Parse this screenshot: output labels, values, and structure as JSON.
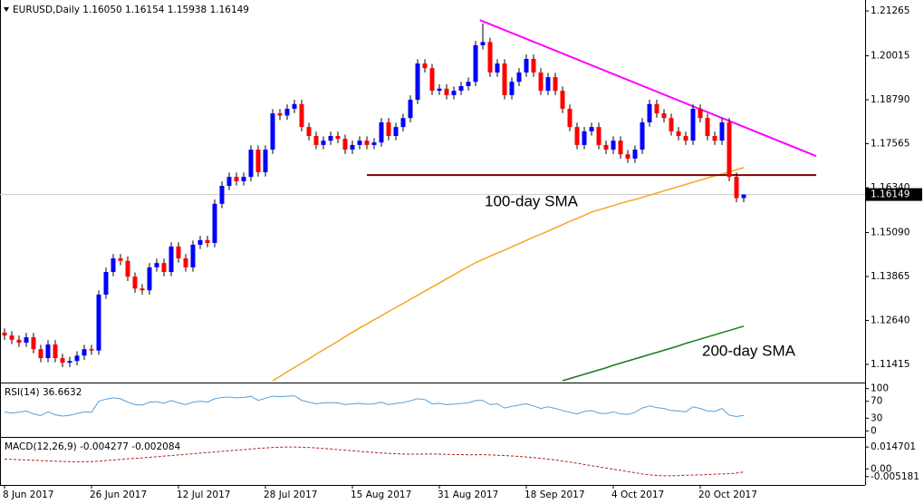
{
  "chart_data": [
    {
      "type": "candlestick",
      "title": "EURUSD,Daily  1.16050 1.16154 1.15938 1.16149",
      "categories": [
        "8 Jun 2017",
        null,
        null,
        null,
        null,
        null,
        null,
        null,
        null,
        null,
        null,
        null,
        "26 Jun 2017",
        null,
        null,
        null,
        null,
        null,
        null,
        null,
        null,
        null,
        null,
        null,
        "12 Jul 2017",
        null,
        null,
        null,
        null,
        null,
        null,
        null,
        null,
        null,
        null,
        null,
        "28 Jul 2017",
        null,
        null,
        null,
        null,
        null,
        null,
        null,
        null,
        null,
        null,
        null,
        "15 Aug 2017",
        null,
        null,
        null,
        null,
        null,
        null,
        null,
        null,
        null,
        null,
        null,
        "31 Aug 2017",
        null,
        null,
        null,
        null,
        null,
        null,
        null,
        null,
        null,
        null,
        null,
        "18 Sep 2017",
        null,
        null,
        null,
        null,
        null,
        null,
        null,
        null,
        null,
        null,
        null,
        "4 Oct 2017",
        null,
        null,
        null,
        null,
        null,
        null,
        null,
        null,
        null,
        null,
        null,
        "20 Oct 2017",
        null,
        null,
        null,
        null,
        null,
        null
      ],
      "open": [
        1.123,
        1.1222,
        1.121,
        1.1202,
        1.1217,
        1.1184,
        1.1159,
        1.1197,
        1.1159,
        1.1146,
        1.1151,
        1.1166,
        1.1184,
        1.118,
        1.1336,
        1.1399,
        1.1437,
        1.143,
        1.1386,
        1.1353,
        1.1348,
        1.1412,
        1.1424,
        1.1399,
        1.147,
        1.1437,
        1.1412,
        1.1475,
        1.1488,
        1.148,
        1.1589,
        1.1639,
        1.1664,
        1.1652,
        1.1664,
        1.174,
        1.1677,
        1.174,
        1.1841,
        1.1835,
        1.1854,
        1.1867,
        1.1803,
        1.1778,
        1.1753,
        1.1765,
        1.1778,
        1.177,
        1.174,
        1.1753,
        1.1765,
        1.1753,
        1.176,
        1.1816,
        1.1778,
        1.1803,
        1.1828,
        1.1879,
        1.198,
        1.1967,
        1.1904,
        1.191,
        1.1892,
        1.1904,
        1.1917,
        1.1929,
        1.2031,
        1.204,
        1.1955,
        1.198,
        1.1892,
        1.1929,
        1.1955,
        1.1993,
        1.1955,
        1.1904,
        1.1942,
        1.1904,
        1.1854,
        1.1803,
        1.1753,
        1.1791,
        1.1803,
        1.1753,
        1.174,
        1.1765,
        1.1727,
        1.1715,
        1.174,
        1.1816,
        1.1867,
        1.1841,
        1.1828,
        1.1791,
        1.1778,
        1.1765,
        1.1854,
        1.1828,
        1.1778,
        1.1765,
        1.1816,
        1.1664,
        1.1605
      ],
      "high": [
        1.1242,
        1.1234,
        1.1222,
        1.1229,
        1.1229,
        1.1196,
        1.1209,
        1.1209,
        1.1171,
        1.1163,
        1.1178,
        1.1196,
        1.1196,
        1.1348,
        1.1411,
        1.1449,
        1.1449,
        1.1442,
        1.1398,
        1.1365,
        1.1424,
        1.1436,
        1.1436,
        1.1482,
        1.1482,
        1.1449,
        1.1487,
        1.15,
        1.15,
        1.1601,
        1.1651,
        1.1676,
        1.1676,
        1.1676,
        1.1752,
        1.1752,
        1.1752,
        1.1853,
        1.1853,
        1.1866,
        1.1879,
        1.1879,
        1.1815,
        1.179,
        1.1777,
        1.179,
        1.179,
        1.1782,
        1.1765,
        1.1777,
        1.1777,
        1.1772,
        1.1828,
        1.1828,
        1.1815,
        1.184,
        1.1891,
        1.1992,
        1.1992,
        1.1979,
        1.1922,
        1.1922,
        1.1916,
        1.1929,
        1.1941,
        1.2043,
        1.2092,
        1.2052,
        1.1992,
        1.1992,
        1.1941,
        1.1967,
        1.2005,
        1.2005,
        1.1967,
        1.1954,
        1.1954,
        1.1916,
        1.1866,
        1.1815,
        1.1803,
        1.1815,
        1.1815,
        1.1765,
        1.1777,
        1.1777,
        1.1739,
        1.1752,
        1.1828,
        1.1879,
        1.1879,
        1.1853,
        1.184,
        1.1803,
        1.179,
        1.1866,
        1.1866,
        1.184,
        1.179,
        1.1828,
        1.1828,
        1.1676,
        1.16154
      ],
      "low": [
        1.121,
        1.1198,
        1.119,
        1.119,
        1.1172,
        1.1147,
        1.1147,
        1.1147,
        1.1134,
        1.1134,
        1.1139,
        1.1154,
        1.1168,
        1.1168,
        1.1324,
        1.1387,
        1.1418,
        1.1374,
        1.1341,
        1.1336,
        1.1336,
        1.14,
        1.1387,
        1.1387,
        1.1425,
        1.14,
        1.14,
        1.1463,
        1.1468,
        1.1468,
        1.1577,
        1.1627,
        1.164,
        1.164,
        1.1652,
        1.1665,
        1.1665,
        1.1728,
        1.1823,
        1.1823,
        1.1842,
        1.1791,
        1.1766,
        1.1741,
        1.1741,
        1.1753,
        1.1758,
        1.1728,
        1.1728,
        1.1741,
        1.1741,
        1.1741,
        1.1748,
        1.1766,
        1.1766,
        1.1791,
        1.1816,
        1.1867,
        1.1955,
        1.1892,
        1.1892,
        1.188,
        1.188,
        1.1892,
        1.1905,
        1.1917,
        1.2019,
        1.1943,
        1.1943,
        1.188,
        1.188,
        1.1917,
        1.1943,
        1.1943,
        1.1892,
        1.1892,
        1.1892,
        1.1842,
        1.1791,
        1.1741,
        1.1741,
        1.1779,
        1.1741,
        1.1728,
        1.1728,
        1.1715,
        1.1703,
        1.1703,
        1.1728,
        1.1804,
        1.1829,
        1.1816,
        1.1779,
        1.1766,
        1.1753,
        1.1753,
        1.1816,
        1.1766,
        1.1753,
        1.1753,
        1.1652,
        1.1593,
        1.15938
      ],
      "close": [
        1.1222,
        1.121,
        1.1202,
        1.1217,
        1.1184,
        1.1159,
        1.1197,
        1.1159,
        1.1146,
        1.1151,
        1.1166,
        1.1184,
        1.118,
        1.1336,
        1.1399,
        1.1437,
        1.143,
        1.1386,
        1.1353,
        1.1348,
        1.1412,
        1.1424,
        1.1399,
        1.147,
        1.1437,
        1.1412,
        1.1475,
        1.1488,
        1.148,
        1.1589,
        1.1639,
        1.1664,
        1.1652,
        1.1664,
        1.174,
        1.1677,
        1.174,
        1.1841,
        1.1835,
        1.1854,
        1.1867,
        1.1803,
        1.1778,
        1.1753,
        1.1765,
        1.1778,
        1.177,
        1.174,
        1.1753,
        1.1765,
        1.1753,
        1.176,
        1.1816,
        1.1778,
        1.1803,
        1.1828,
        1.1879,
        1.198,
        1.1967,
        1.1904,
        1.191,
        1.1892,
        1.1904,
        1.1917,
        1.1929,
        1.2031,
        1.204,
        1.1955,
        1.198,
        1.1892,
        1.1929,
        1.1955,
        1.1993,
        1.1955,
        1.1904,
        1.1942,
        1.1904,
        1.1854,
        1.1803,
        1.1753,
        1.1791,
        1.1803,
        1.1753,
        1.174,
        1.1765,
        1.1727,
        1.1715,
        1.174,
        1.1816,
        1.1867,
        1.1841,
        1.1828,
        1.1791,
        1.1778,
        1.1765,
        1.1854,
        1.1828,
        1.1778,
        1.1765,
        1.1816,
        1.1664,
        1.1605,
        1.16149
      ],
      "up_color": "#0000ff",
      "down_color": "#ff0000",
      "wick_color": "#000000",
      "series": [
        {
          "name": "100-day SMA",
          "color": "#f5a623",
          "values": [
            null,
            null,
            null,
            null,
            null,
            null,
            null,
            null,
            null,
            null,
            null,
            null,
            null,
            null,
            null,
            null,
            null,
            null,
            null,
            null,
            null,
            null,
            null,
            null,
            null,
            null,
            null,
            null,
            null,
            null,
            null,
            null,
            null,
            null,
            null,
            null,
            null,
            1.1096,
            1.1108,
            1.1121,
            1.1133,
            1.1145,
            1.1157,
            1.117,
            1.1182,
            1.1194,
            1.1206,
            1.1219,
            1.1231,
            1.1243,
            1.1254,
            1.1266,
            1.1277,
            1.1289,
            1.13,
            1.1311,
            1.1323,
            1.1334,
            1.1346,
            1.1357,
            1.1368,
            1.138,
            1.1391,
            1.1403,
            1.1414,
            1.1425,
            1.1434,
            1.1443,
            1.1452,
            1.146,
            1.1469,
            1.1478,
            1.1487,
            1.1496,
            1.1504,
            1.1513,
            1.1522,
            1.1531,
            1.154,
            1.1548,
            1.1557,
            1.1566,
            1.1572,
            1.1578,
            1.1584,
            1.159,
            1.1596,
            1.1601,
            1.1607,
            1.1613,
            1.1619,
            1.1625,
            1.1631,
            1.1637,
            1.1643,
            1.1649,
            1.1655,
            1.1661,
            1.1667,
            1.1672,
            1.1678,
            1.1684,
            1.169
          ]
        },
        {
          "name": "200-day SMA",
          "color": "#1a7a1a",
          "values": [
            null,
            null,
            null,
            null,
            null,
            null,
            null,
            null,
            null,
            null,
            null,
            null,
            null,
            null,
            null,
            null,
            null,
            null,
            null,
            null,
            null,
            null,
            null,
            null,
            null,
            null,
            null,
            null,
            null,
            null,
            null,
            null,
            null,
            null,
            null,
            null,
            null,
            null,
            null,
            null,
            null,
            null,
            null,
            null,
            null,
            null,
            null,
            null,
            null,
            null,
            null,
            null,
            null,
            null,
            null,
            null,
            null,
            null,
            null,
            null,
            null,
            null,
            null,
            null,
            null,
            null,
            null,
            null,
            null,
            null,
            null,
            null,
            null,
            null,
            null,
            null,
            null,
            1.1096,
            1.1102,
            1.1108,
            1.1114,
            1.112,
            1.1126,
            1.1132,
            1.1139,
            1.1145,
            1.1151,
            1.1157,
            1.1163,
            1.1169,
            1.1175,
            1.1181,
            1.1187,
            1.1193,
            1.12,
            1.1206,
            1.1212,
            1.1218,
            1.1224,
            1.123,
            1.1236,
            1.1242,
            1.1248
          ]
        }
      ],
      "lines": [
        {
          "color": "#ff00ff",
          "x": [
            65.6,
            112
          ],
          "y": [
            1.2101,
            1.1722
          ]
        },
        {
          "color": "#800000",
          "x": [
            50,
            112
          ],
          "y": [
            1.1669,
            1.1669
          ]
        }
      ],
      "ylim": [
        1.1096,
        1.2157
      ],
      "yticks": [
        1.21265,
        1.20015,
        {
          "value": 1.1879,
          "label": "1.18790"
        },
        1.17565,
        {
          "value": 1.1634,
          "label": "1.16340"
        },
        {
          "value": 1.1509,
          "label": "1.15090"
        },
        1.13865,
        {
          "value": 1.1264,
          "label": "1.12640"
        },
        1.11415
      ]
    },
    {
      "type": "line",
      "title": "RSI(14) 36.6632",
      "color": "#5aa0d8",
      "values": [
        45,
        42,
        44,
        47,
        40,
        36,
        45,
        38,
        35,
        37,
        41,
        45,
        44,
        70,
        75,
        78,
        76,
        68,
        62,
        61,
        68,
        69,
        65,
        72,
        66,
        62,
        68,
        70,
        68,
        76,
        79,
        80,
        78,
        79,
        82,
        72,
        77,
        82,
        81,
        82,
        83,
        72,
        68,
        64,
        66,
        67,
        66,
        62,
        64,
        65,
        63,
        64,
        68,
        62,
        65,
        67,
        71,
        76,
        74,
        64,
        65,
        62,
        63,
        65,
        66,
        72,
        72,
        62,
        64,
        54,
        58,
        61,
        64,
        59,
        53,
        57,
        53,
        48,
        44,
        40,
        46,
        48,
        42,
        41,
        45,
        40,
        39,
        44,
        54,
        59,
        55,
        53,
        48,
        47,
        45,
        57,
        53,
        47,
        46,
        53,
        37,
        34,
        36.6632
      ],
      "ylim": [
        -10,
        110
      ],
      "yticks": [
        100,
        70,
        30,
        0
      ]
    },
    {
      "type": "line",
      "title": "MACD(12,26,9) -0.004277 -0.002084",
      "color": "#b22222",
      "dashed": true,
      "values": [
        0.0066,
        0.0064,
        0.0062,
        0.006,
        0.0058,
        0.0056,
        0.0054,
        0.0052,
        0.005,
        0.0049,
        0.0048,
        0.0048,
        0.0049,
        0.0052,
        0.0056,
        0.006,
        0.0064,
        0.0068,
        0.0071,
        0.0074,
        0.0078,
        0.0082,
        0.0086,
        0.009,
        0.0094,
        0.0098,
        0.0102,
        0.0106,
        0.011,
        0.0114,
        0.0118,
        0.0122,
        0.0126,
        0.013,
        0.0134,
        0.0138,
        0.0141,
        0.0144,
        0.0146,
        0.0147,
        0.0147,
        0.0146,
        0.0144,
        0.0141,
        0.0138,
        0.0134,
        0.013,
        0.0126,
        0.0122,
        0.0118,
        0.0114,
        0.011,
        0.0107,
        0.0104,
        0.0102,
        0.01,
        0.0099,
        0.0099,
        0.01,
        0.01,
        0.0099,
        0.0098,
        0.0097,
        0.0096,
        0.0095,
        0.0095,
        0.0096,
        0.0094,
        0.0092,
        0.009,
        0.0087,
        0.0084,
        0.008,
        0.0076,
        0.0071,
        0.0066,
        0.006,
        0.0053,
        0.0046,
        0.0038,
        0.003,
        0.0022,
        0.0014,
        0.0006,
        -0.0002,
        -0.001,
        -0.0018,
        -0.0026,
        -0.0034,
        -0.004,
        -0.0044,
        -0.0046,
        -0.0046,
        -0.0045,
        -0.0043,
        -0.0041,
        -0.004,
        -0.0038,
        -0.0036,
        -0.0034,
        -0.0032,
        -0.0028,
        -0.002084
      ],
      "ylim": [
        -0.0102,
        0.0203
      ],
      "yticks": [
        0.014701,
        {
          "value": 0,
          "label": "0.00"
        },
        -0.005181
      ]
    }
  ]
}
